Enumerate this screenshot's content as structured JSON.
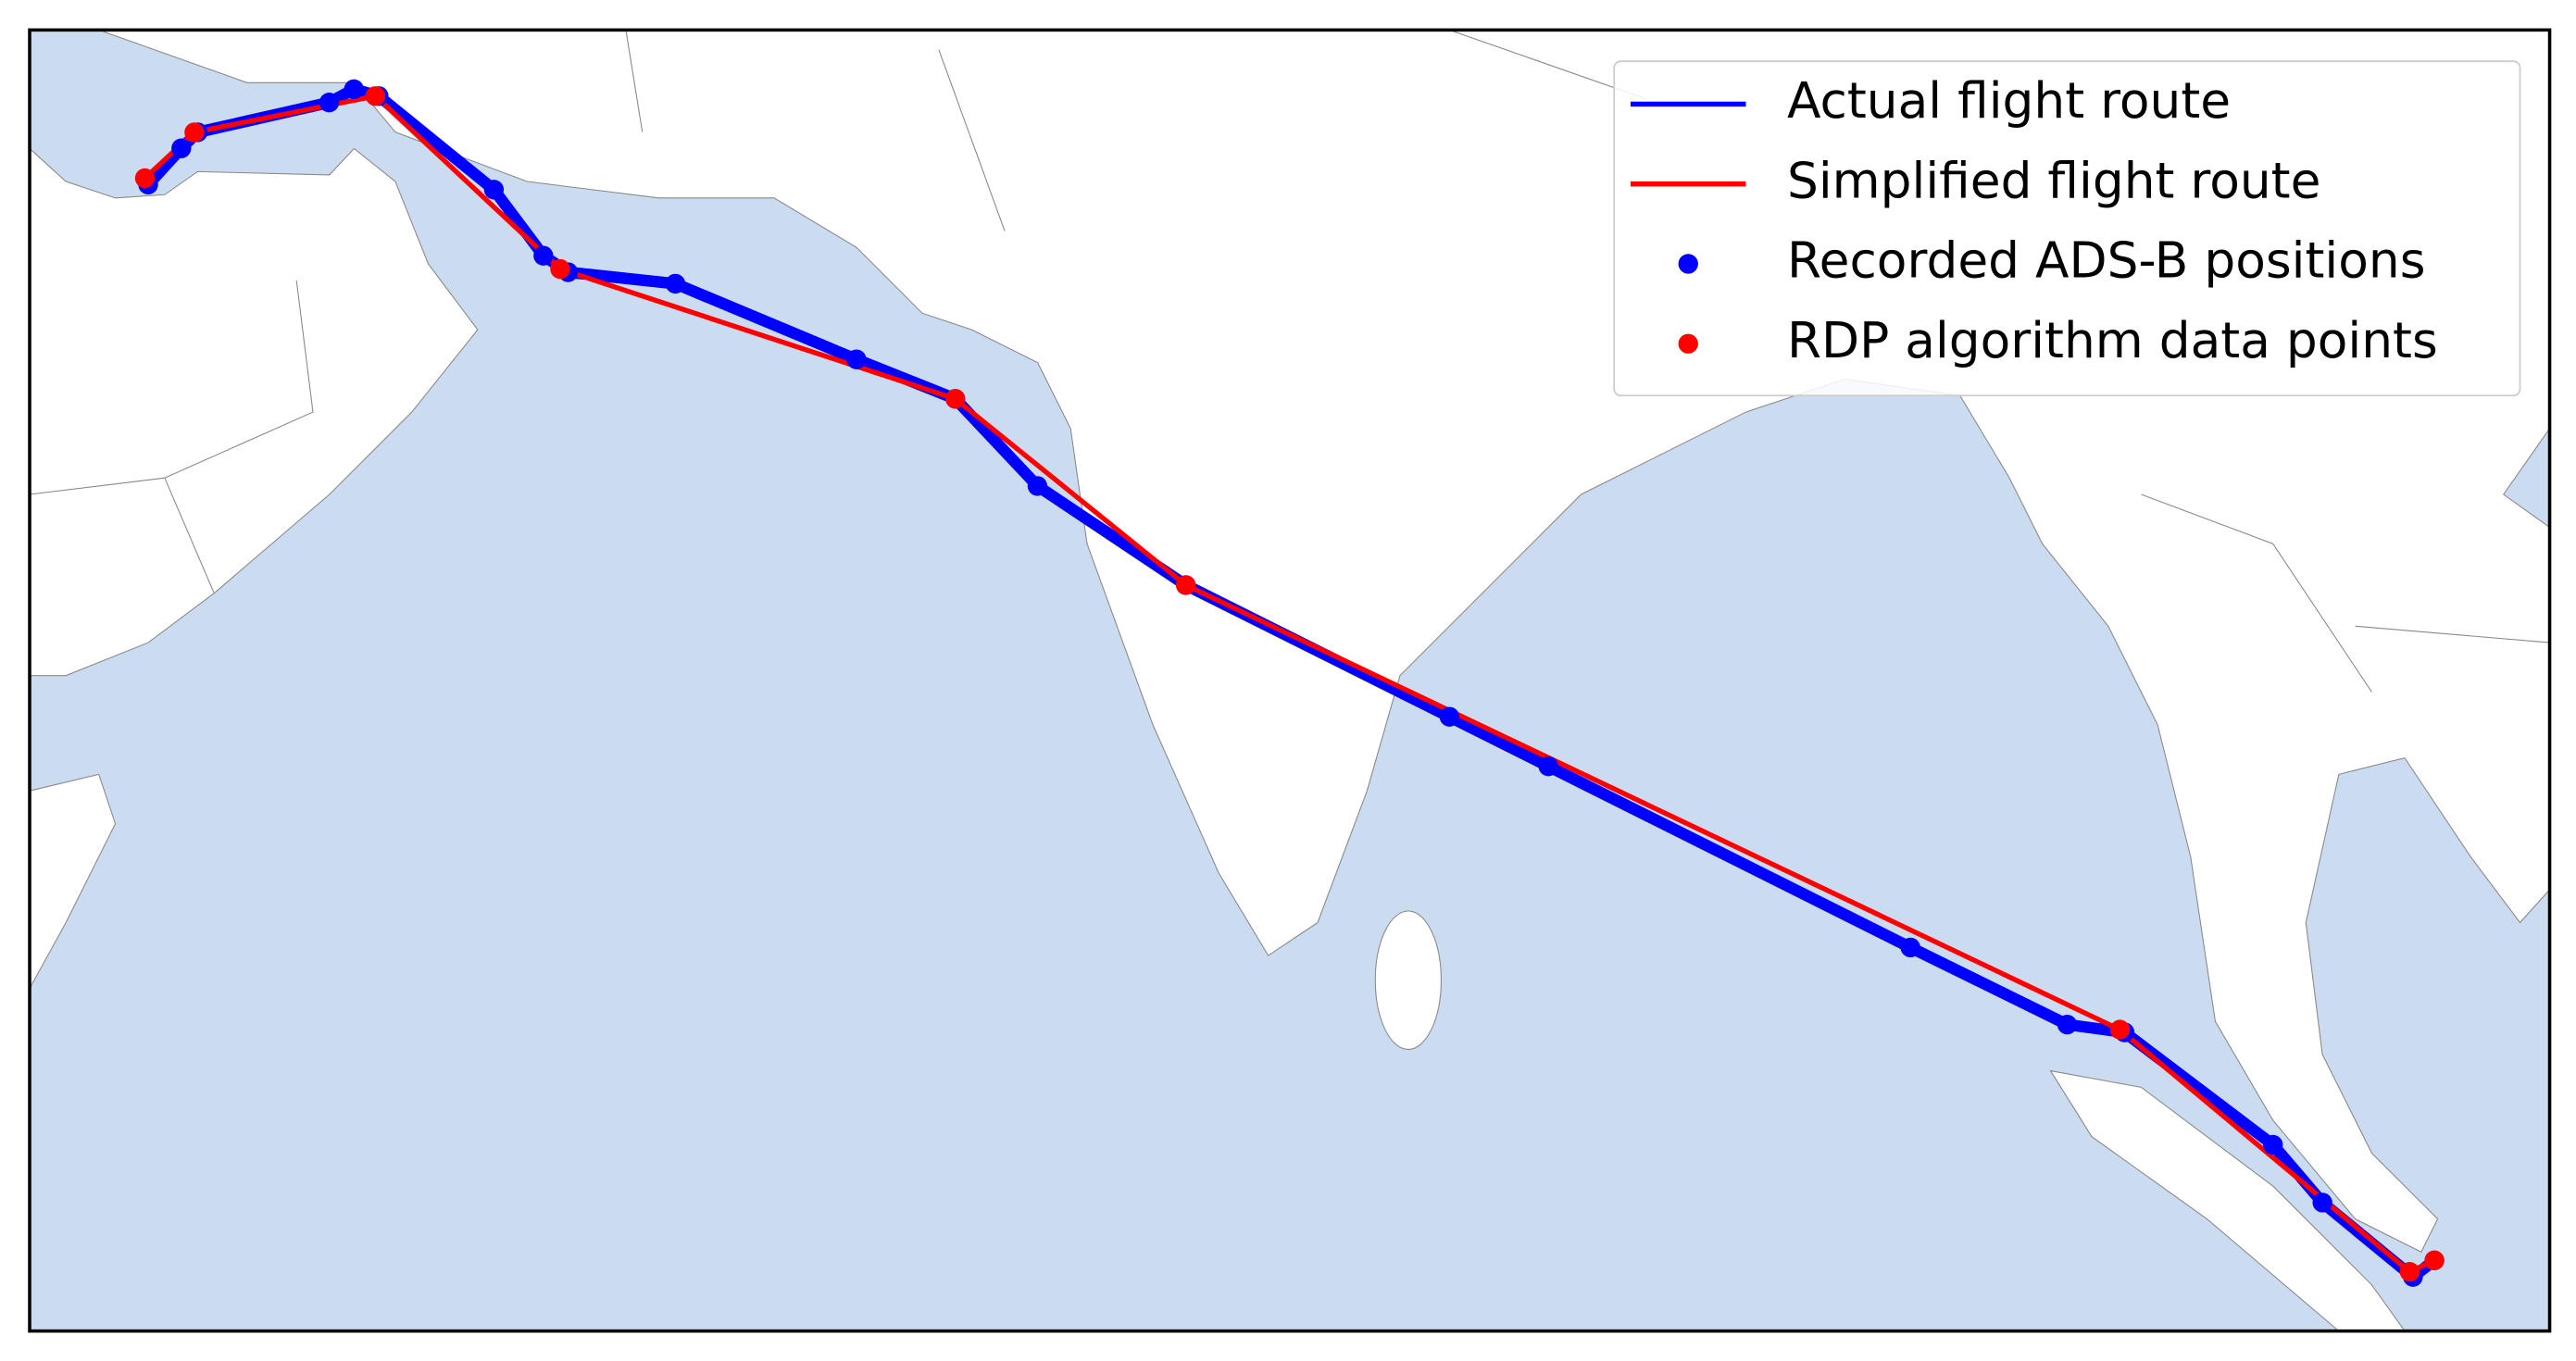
{
  "chart_data": {
    "type": "map",
    "xlim": [
      52.83,
      106.84
    ],
    "ylim": [
      0.04,
      28.4
    ],
    "legend": "upper right",
    "series": [
      {
        "name": "Actual flight route",
        "type": "line",
        "color": "#0000ff",
        "x": [
          55.37,
          56.08,
          56.43,
          59.25,
          59.78,
          60.31,
          62.78,
          63.84,
          64.37,
          66.67,
          70.55,
          72.67,
          74.43,
          77.61,
          83.26,
          85.38,
          93.14,
          96.5,
          97.73,
          100.91,
          101.97,
          103.91,
          104.37
        ],
        "y": [
          25.03,
          25.82,
          26.17,
          26.82,
          27.11,
          26.96,
          24.92,
          23.48,
          23.12,
          22.87,
          21.22,
          20.36,
          18.46,
          16.3,
          13.43,
          12.35,
          8.4,
          6.72,
          6.55,
          4.1,
          2.84,
          1.22,
          1.58
        ]
      },
      {
        "name": "Simplified flight route",
        "type": "line",
        "color": "#ff0000",
        "x": [
          55.3,
          56.36,
          60.24,
          64.2,
          72.67,
          77.61,
          97.63,
          103.84,
          104.37
        ],
        "y": [
          25.17,
          26.17,
          26.96,
          23.19,
          20.36,
          16.3,
          6.61,
          1.33,
          1.58
        ]
      },
      {
        "name": "Recorded ADS-B positions",
        "type": "scatter",
        "color": "#0000ff",
        "x": [
          55.37,
          56.08,
          56.43,
          59.25,
          59.78,
          60.31,
          62.78,
          63.84,
          64.37,
          66.67,
          70.55,
          72.67,
          74.43,
          77.61,
          83.26,
          85.38,
          93.14,
          96.5,
          97.73,
          100.91,
          101.97,
          103.91,
          104.37
        ],
        "y": [
          25.03,
          25.82,
          26.17,
          26.82,
          27.11,
          26.96,
          24.92,
          23.48,
          23.12,
          22.87,
          21.22,
          20.36,
          18.46,
          16.3,
          13.43,
          12.35,
          8.4,
          6.72,
          6.55,
          4.1,
          2.84,
          1.22,
          1.58
        ]
      },
      {
        "name": "RDP algorithm data points",
        "type": "scatter",
        "color": "#ff0000",
        "x": [
          55.3,
          56.36,
          60.24,
          64.2,
          72.67,
          77.61,
          97.63,
          103.84,
          104.37
        ],
        "y": [
          25.17,
          26.17,
          26.96,
          23.19,
          20.36,
          16.3,
          6.61,
          1.33,
          1.58
        ]
      }
    ]
  }
}
